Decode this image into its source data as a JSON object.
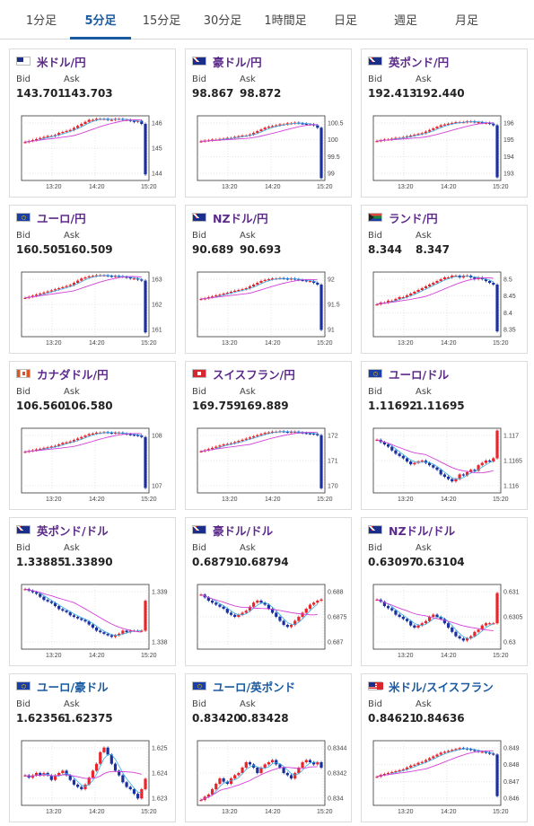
{
  "tabs": [
    {
      "label": "1分足",
      "active": false
    },
    {
      "label": "5分足",
      "active": true
    },
    {
      "label": "15分足",
      "active": false
    },
    {
      "label": "30分足",
      "active": false
    },
    {
      "label": "1時間足",
      "active": false
    },
    {
      "label": "日足",
      "active": false
    },
    {
      "label": "週足",
      "active": false
    },
    {
      "label": "月足",
      "active": false
    }
  ],
  "labels": {
    "bid": "Bid",
    "ask": "Ask"
  },
  "colors": {
    "up": "#e8252b",
    "down": "#1b2f9e",
    "ma_fast": "#32aee8",
    "ma_slow": "#d23fd8",
    "pair_jpy": "#5b2a8a",
    "pair_cross": "#1a5aa0"
  },
  "cards": [
    {
      "pair": "米ドル/円",
      "flag": "us-flag-icon",
      "bid": "143.701",
      "ask": "143.703",
      "chart_data": {
        "type": "candlestick",
        "x_ticks": [
          "13:20",
          "14:20",
          "15:20"
        ],
        "y_ticks": [
          "146",
          "145",
          "144"
        ],
        "ylim": [
          143.4,
          146.6
        ],
        "close": [
          145.3,
          145.35,
          145.4,
          145.45,
          145.5,
          145.55,
          145.6,
          145.6,
          145.65,
          145.75,
          145.8,
          145.85,
          145.9,
          146.0,
          146.1,
          146.2,
          146.3,
          146.4,
          146.4,
          146.45,
          146.45,
          146.45,
          146.4,
          146.4,
          146.45,
          146.45,
          146.4,
          146.4,
          146.35,
          146.3,
          146.35,
          146.2,
          143.7
        ]
      }
    },
    {
      "pair": "豪ドル/円",
      "flag": "au-flag-icon",
      "bid": "98.867",
      "ask": "98.872",
      "chart_data": {
        "type": "candlestick",
        "x_ticks": [
          "13:20",
          "14:20",
          "15:20"
        ],
        "y_ticks": [
          "100.5",
          "100",
          "99.5",
          "99"
        ],
        "ylim": [
          98.8,
          100.7
        ],
        "close": [
          99.95,
          99.97,
          99.98,
          100.0,
          100.0,
          100.02,
          100.03,
          100.05,
          100.05,
          100.08,
          100.1,
          100.12,
          100.12,
          100.15,
          100.2,
          100.25,
          100.3,
          100.35,
          100.38,
          100.4,
          100.42,
          100.45,
          100.45,
          100.48,
          100.48,
          100.5,
          100.48,
          100.47,
          100.45,
          100.45,
          100.42,
          100.35,
          98.87
        ]
      }
    },
    {
      "pair": "英ポンド/円",
      "flag": "uk-flag-icon",
      "bid": "192.413",
      "ask": "192.440",
      "chart_data": {
        "type": "candlestick",
        "x_ticks": [
          "13:20",
          "14:20",
          "15:20"
        ],
        "y_ticks": [
          "196",
          "195",
          "194",
          "193"
        ],
        "ylim": [
          192.2,
          196.3
        ],
        "close": [
          194.7,
          194.75,
          194.8,
          194.8,
          194.85,
          194.9,
          194.9,
          194.95,
          195.0,
          195.05,
          195.1,
          195.15,
          195.2,
          195.3,
          195.4,
          195.5,
          195.6,
          195.7,
          195.75,
          195.8,
          195.85,
          195.9,
          195.9,
          195.9,
          195.95,
          195.95,
          195.9,
          195.9,
          195.85,
          195.85,
          195.8,
          195.7,
          192.4
        ]
      }
    },
    {
      "pair": "ユーロ/円",
      "flag": "eu-flag-icon",
      "bid": "160.505",
      "ask": "160.509",
      "chart_data": {
        "type": "candlestick",
        "x_ticks": [
          "13:20",
          "14:20",
          "15:20"
        ],
        "y_ticks": [
          "163",
          "162",
          "161"
        ],
        "ylim": [
          160.3,
          163.3
        ],
        "close": [
          162.1,
          162.15,
          162.2,
          162.25,
          162.3,
          162.35,
          162.4,
          162.45,
          162.5,
          162.55,
          162.6,
          162.65,
          162.7,
          162.8,
          162.9,
          163.0,
          163.05,
          163.1,
          163.12,
          163.15,
          163.15,
          163.15,
          163.12,
          163.1,
          163.12,
          163.1,
          163.08,
          163.05,
          163.0,
          163.0,
          162.95,
          162.9,
          160.5
        ]
      }
    },
    {
      "pair": "NZドル/円",
      "flag": "nz-flag-icon",
      "bid": "90.689",
      "ask": "90.693",
      "chart_data": {
        "type": "candlestick",
        "x_ticks": [
          "13:20",
          "14:20",
          "15:20"
        ],
        "y_ticks": [
          "92",
          "91.5",
          "91"
        ],
        "ylim": [
          90.5,
          92.3
        ],
        "close": [
          91.55,
          91.57,
          91.6,
          91.62,
          91.65,
          91.67,
          91.7,
          91.72,
          91.75,
          91.78,
          91.8,
          91.82,
          91.85,
          91.9,
          91.95,
          92.0,
          92.05,
          92.08,
          92.1,
          92.12,
          92.12,
          92.13,
          92.12,
          92.1,
          92.12,
          92.1,
          92.08,
          92.07,
          92.05,
          92.05,
          92.0,
          91.95,
          90.69
        ]
      }
    },
    {
      "pair": "ランド/円",
      "flag": "za-flag-icon",
      "bid": "8.344",
      "ask": "8.347",
      "chart_data": {
        "type": "candlestick",
        "x_ticks": [
          "13:20",
          "14:20",
          "15:20"
        ],
        "y_ticks": [
          "8.5",
          "8.45",
          "8.4",
          "8.35"
        ],
        "ylim": [
          8.33,
          8.51
        ],
        "close": [
          8.42,
          8.425,
          8.425,
          8.43,
          8.43,
          8.435,
          8.44,
          8.44,
          8.445,
          8.45,
          8.455,
          8.46,
          8.465,
          8.47,
          8.475,
          8.48,
          8.485,
          8.49,
          8.495,
          8.495,
          8.5,
          8.5,
          8.495,
          8.5,
          8.5,
          8.495,
          8.49,
          8.495,
          8.49,
          8.485,
          8.48,
          8.475,
          8.345
        ]
      }
    },
    {
      "pair": "カナダドル/円",
      "flag": "ca-flag-icon",
      "bid": "106.560",
      "ask": "106.580",
      "chart_data": {
        "type": "candlestick",
        "x_ticks": [
          "13:20",
          "14:20",
          "15:20"
        ],
        "y_ticks": [
          "108",
          "107"
        ],
        "ylim": [
          106.4,
          108.6
        ],
        "close": [
          107.8,
          107.83,
          107.85,
          107.88,
          107.9,
          107.93,
          107.95,
          107.98,
          108.0,
          108.05,
          108.1,
          108.12,
          108.15,
          108.2,
          108.25,
          108.3,
          108.35,
          108.4,
          108.42,
          108.45,
          108.45,
          108.47,
          108.45,
          108.43,
          108.45,
          108.45,
          108.42,
          108.4,
          108.38,
          108.37,
          108.35,
          108.3,
          106.57
        ]
      }
    },
    {
      "pair": "スイスフラン/円",
      "flag": "ch-flag-icon",
      "bid": "169.759",
      "ask": "169.889",
      "chart_data": {
        "type": "candlestick",
        "x_ticks": [
          "13:20",
          "14:20",
          "15:20"
        ],
        "y_ticks": [
          "172",
          "171",
          "170"
        ],
        "ylim": [
          169.6,
          172.4
        ],
        "close": [
          171.4,
          171.45,
          171.5,
          171.55,
          171.6,
          171.65,
          171.7,
          171.72,
          171.75,
          171.8,
          171.85,
          171.9,
          171.95,
          172.0,
          172.05,
          172.1,
          172.15,
          172.2,
          172.22,
          172.25,
          172.25,
          172.27,
          172.25,
          172.23,
          172.25,
          172.25,
          172.22,
          172.2,
          172.18,
          172.17,
          172.15,
          172.1,
          169.8
        ]
      }
    },
    {
      "pair": "ユーロ/ドル",
      "flag": "eu-flag-icon",
      "bid": "1.11692",
      "ask": "1.11695",
      "chart_data": {
        "type": "candlestick",
        "x_ticks": [
          "13:20",
          "14:20",
          "15:20"
        ],
        "y_ticks": [
          "1.117",
          "1.1165",
          "1.116"
        ],
        "ylim": [
          1.1158,
          1.1172
        ],
        "close": [
          1.11695,
          1.1169,
          1.11685,
          1.1168,
          1.11672,
          1.11665,
          1.1166,
          1.11655,
          1.11648,
          1.11642,
          1.11645,
          1.11648,
          1.1165,
          1.11645,
          1.1164,
          1.11635,
          1.1163,
          1.1162,
          1.11615,
          1.1161,
          1.11605,
          1.1161,
          1.1162,
          1.11618,
          1.11625,
          1.1163,
          1.11628,
          1.1164,
          1.11645,
          1.1165,
          1.11648,
          1.11655,
          1.11715
        ]
      }
    },
    {
      "pair": "英ポンド/ドル",
      "flag": "uk-flag-icon",
      "bid": "1.33885",
      "ask": "1.33890",
      "chart_data": {
        "type": "candlestick",
        "x_ticks": [
          "13:20",
          "14:20",
          "15:20"
        ],
        "y_ticks": [
          "1.339",
          "1.338"
        ],
        "ylim": [
          1.3373,
          1.3394
        ],
        "close": [
          1.33925,
          1.3392,
          1.33915,
          1.3391,
          1.339,
          1.3389,
          1.33885,
          1.3388,
          1.3387,
          1.3386,
          1.33855,
          1.3385,
          1.3384,
          1.33835,
          1.3383,
          1.33825,
          1.3382,
          1.3381,
          1.338,
          1.3379,
          1.33785,
          1.3378,
          1.33775,
          1.3377,
          1.33775,
          1.3378,
          1.3379,
          1.33785,
          1.3379,
          1.3379,
          1.3379,
          1.3379,
          1.33887
        ]
      }
    },
    {
      "pair": "豪ドル/ドル",
      "flag": "au-flag-icon",
      "bid": "0.68791",
      "ask": "0.68794",
      "chart_data": {
        "type": "candlestick",
        "x_ticks": [],
        "y_ticks": [
          "0.688",
          "0.6875",
          "0.687"
        ],
        "ylim": [
          0.6867,
          0.6883
        ],
        "close": [
          0.68805,
          0.68798,
          0.6879,
          0.68785,
          0.6878,
          0.68775,
          0.6877,
          0.6876,
          0.68755,
          0.6875,
          0.68755,
          0.6876,
          0.68765,
          0.68775,
          0.68785,
          0.6879,
          0.68785,
          0.6878,
          0.6877,
          0.6876,
          0.6875,
          0.6874,
          0.6873,
          0.68725,
          0.6873,
          0.6874,
          0.6875,
          0.6876,
          0.6877,
          0.6878,
          0.68785,
          0.6879,
          0.68793
        ]
      }
    },
    {
      "pair": "NZドル/ドル",
      "flag": "nz-flag-icon",
      "bid": "0.63097",
      "ask": "0.63104",
      "chart_data": {
        "type": "candlestick",
        "x_ticks": [
          "13:20",
          "14:20",
          "15:20"
        ],
        "y_ticks": [
          "0.631",
          "0.6305",
          "0.63"
        ],
        "ylim": [
          0.6297,
          0.6312
        ],
        "close": [
          0.63085,
          0.6308,
          0.6307,
          0.63065,
          0.6306,
          0.6305,
          0.63045,
          0.6304,
          0.63035,
          0.63025,
          0.6302,
          0.63025,
          0.6303,
          0.63035,
          0.63045,
          0.6305,
          0.63045,
          0.6304,
          0.6303,
          0.6302,
          0.6301,
          0.63,
          0.62995,
          0.6299,
          0.62995,
          0.63,
          0.6301,
          0.63015,
          0.63025,
          0.6303,
          0.6303,
          0.6303,
          0.631
        ]
      }
    },
    {
      "pair": "ユーロ/豪ドル",
      "flag": "eu-flag-icon",
      "bid": "1.62356",
      "ask": "1.62375",
      "chart_data": {
        "type": "candlestick",
        "x_ticks": [
          "13:20",
          "14:20",
          "15:20"
        ],
        "y_ticks": [
          "1.625",
          "1.624",
          "1.623"
        ],
        "ylim": [
          1.6225,
          1.6253
        ],
        "close": [
          1.6238,
          1.6237,
          1.6238,
          1.6239,
          1.6238,
          1.6239,
          1.6238,
          1.6236,
          1.6238,
          1.6239,
          1.624,
          1.6238,
          1.6236,
          1.6234,
          1.6233,
          1.6232,
          1.6234,
          1.6237,
          1.624,
          1.6243,
          1.6248,
          1.625,
          1.6247,
          1.6243,
          1.624,
          1.6238,
          1.6235,
          1.6233,
          1.6232,
          1.623,
          1.6228,
          1.6232,
          1.62365
        ]
      }
    },
    {
      "pair": "ユーロ/英ポンド",
      "flag": "eu-flag-icon",
      "bid": "0.83420",
      "ask": "0.83428",
      "chart_data": {
        "type": "candlestick",
        "x_ticks": [
          "13:20",
          "14:20",
          "15:20"
        ],
        "y_ticks": [
          "0.8344",
          "0.8342",
          "0.834"
        ],
        "ylim": [
          0.8339,
          0.8345
        ],
        "close": [
          0.83395,
          0.83398,
          0.834,
          0.83405,
          0.8341,
          0.83415,
          0.83412,
          0.8341,
          0.83415,
          0.83418,
          0.8342,
          0.83425,
          0.8343,
          0.83428,
          0.83425,
          0.8342,
          0.83425,
          0.83428,
          0.8343,
          0.83432,
          0.83428,
          0.83425,
          0.8342,
          0.83418,
          0.83415,
          0.8342,
          0.83425,
          0.8343,
          0.83432,
          0.8343,
          0.83428,
          0.8343,
          0.83425
        ]
      }
    },
    {
      "pair": "米ドル/スイスフラン",
      "flag": "us-ch-flag-icon",
      "bid": "0.84621",
      "ask": "0.84636",
      "chart_data": {
        "type": "candlestick",
        "x_ticks": [
          "13:20",
          "14:20",
          "15:20"
        ],
        "y_ticks": [
          "0.849",
          "0.848",
          "0.847",
          "0.846"
        ],
        "ylim": [
          0.8458,
          0.8493
        ],
        "close": [
          0.84735,
          0.84745,
          0.8475,
          0.84755,
          0.8476,
          0.84765,
          0.8477,
          0.84775,
          0.84785,
          0.84795,
          0.848,
          0.8481,
          0.84815,
          0.84825,
          0.84835,
          0.84845,
          0.84855,
          0.84865,
          0.8487,
          0.84875,
          0.8488,
          0.84885,
          0.8489,
          0.84888,
          0.84885,
          0.8488,
          0.84875,
          0.8487,
          0.8487,
          0.84865,
          0.8486,
          0.84855,
          0.8463
        ]
      }
    }
  ]
}
